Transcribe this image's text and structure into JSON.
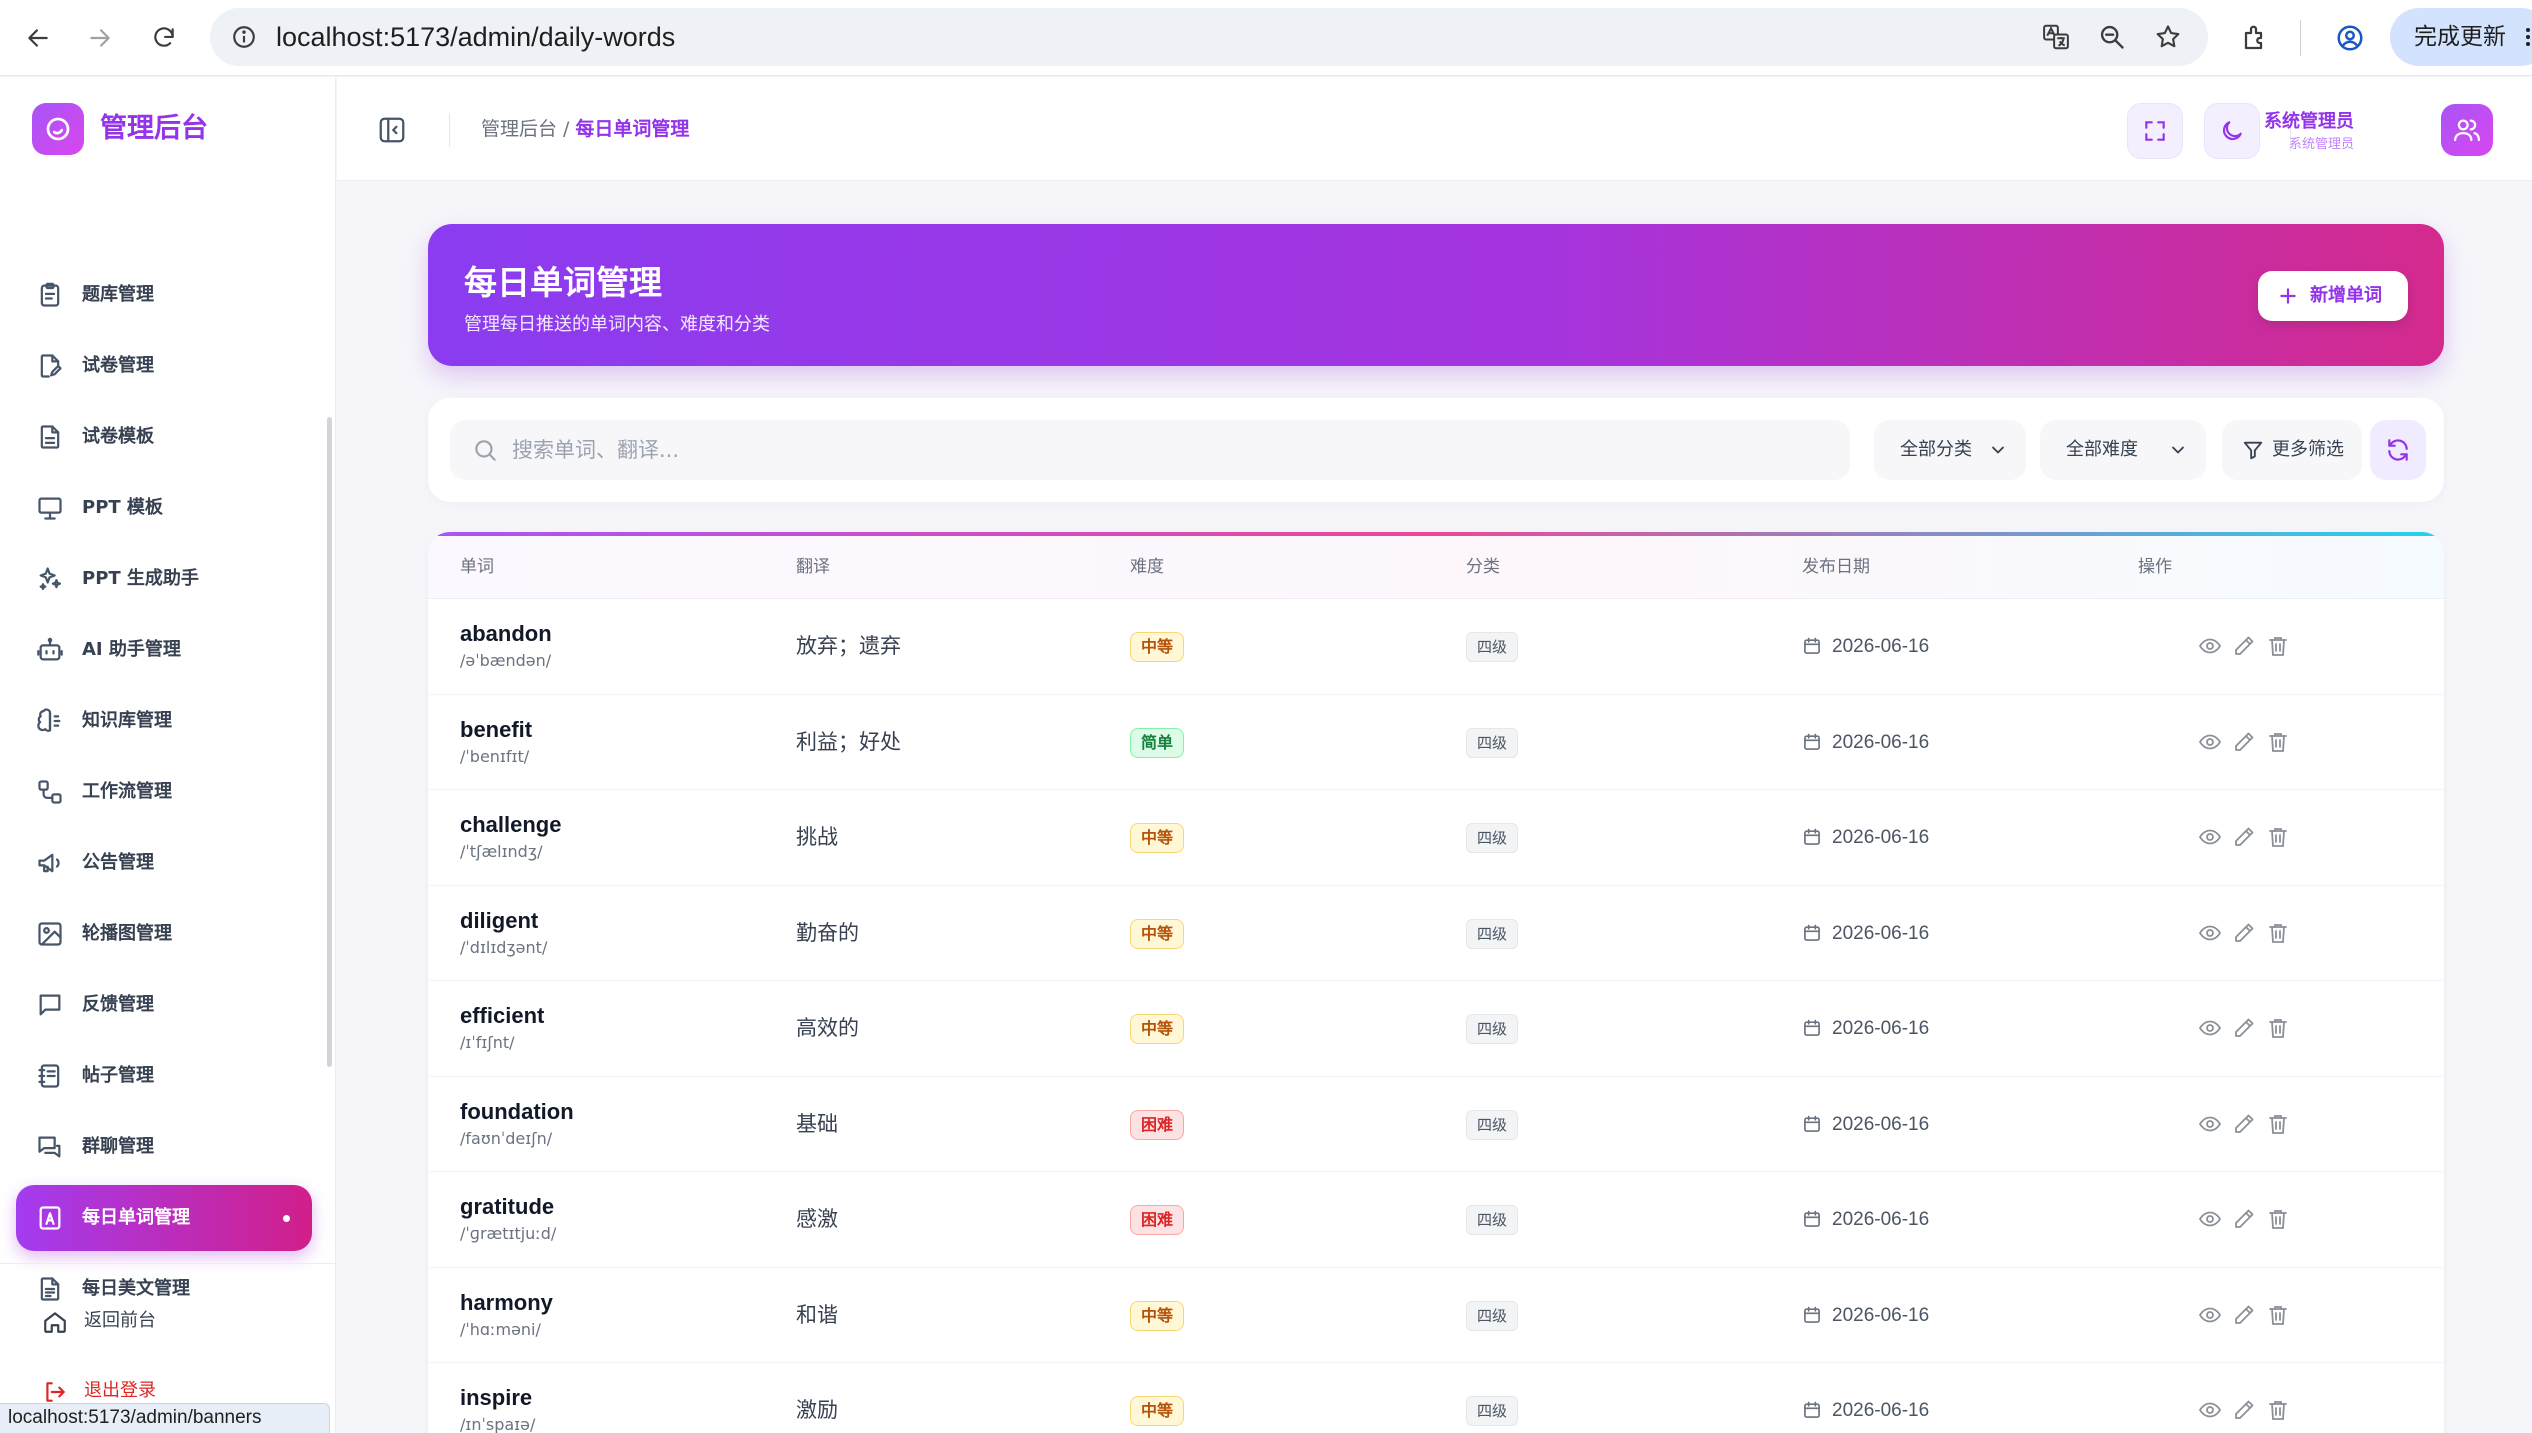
{
  "browser": {
    "url": "localhost:5173/admin/daily-words",
    "update_label": "完成更新",
    "status_url": "localhost:5173/admin/banners"
  },
  "sidebar": {
    "brand": "管理后台",
    "items": [
      {
        "label": "题库管理",
        "icon": "clipboard-icon"
      },
      {
        "label": "试卷管理",
        "icon": "file-edit-icon"
      },
      {
        "label": "试卷模板",
        "icon": "file-text-icon"
      },
      {
        "label": "PPT 模板",
        "icon": "presentation-icon"
      },
      {
        "label": "PPT 生成助手",
        "icon": "sparkles-icon"
      },
      {
        "label": "AI 助手管理",
        "icon": "bot-icon"
      },
      {
        "label": "知识库管理",
        "icon": "brain-icon"
      },
      {
        "label": "工作流管理",
        "icon": "workflow-icon"
      },
      {
        "label": "公告管理",
        "icon": "megaphone-icon"
      },
      {
        "label": "轮播图管理",
        "icon": "image-icon"
      },
      {
        "label": "反馈管理",
        "icon": "message-square-icon"
      },
      {
        "label": "帖子管理",
        "icon": "notebook-icon"
      },
      {
        "label": "群聊管理",
        "icon": "messages-icon"
      },
      {
        "label": "每日单词管理",
        "icon": "letter-a-icon",
        "active": true
      },
      {
        "label": "每日美文管理",
        "icon": "article-icon"
      }
    ],
    "footer": {
      "home_label": "返回前台",
      "logout_label": "退出登录"
    }
  },
  "header": {
    "breadcrumb_root": "管理后台",
    "breadcrumb_sep": "/",
    "breadcrumb_current": "每日单词管理",
    "user_name": "系统管理员",
    "user_role": "系统管理员"
  },
  "banner": {
    "title": "每日单词管理",
    "subtitle": "管理每日推送的单词内容、难度和分类",
    "add_label": "新增单词"
  },
  "filters": {
    "search_placeholder": "搜索单词、翻译...",
    "category": "全部分类",
    "difficulty": "全部难度",
    "more": "更多筛选"
  },
  "table": {
    "columns": [
      "单词",
      "翻译",
      "难度",
      "分类",
      "发布日期",
      "操作"
    ],
    "rows": [
      {
        "word": "abandon",
        "phonetic": "/əˈbændən/",
        "translation": "放弃；遗弃",
        "difficulty": "中等",
        "level": "medium",
        "category": "四级",
        "date": "2026-06-16"
      },
      {
        "word": "benefit",
        "phonetic": "/ˈbenɪfɪt/",
        "translation": "利益；好处",
        "difficulty": "简单",
        "level": "easy",
        "category": "四级",
        "date": "2026-06-16"
      },
      {
        "word": "challenge",
        "phonetic": "/ˈtʃælɪndʒ/",
        "translation": "挑战",
        "difficulty": "中等",
        "level": "medium",
        "category": "四级",
        "date": "2026-06-16"
      },
      {
        "word": "diligent",
        "phonetic": "/ˈdɪlɪdʒənt/",
        "translation": "勤奋的",
        "difficulty": "中等",
        "level": "medium",
        "category": "四级",
        "date": "2026-06-16"
      },
      {
        "word": "efficient",
        "phonetic": "/ɪˈfɪʃnt/",
        "translation": "高效的",
        "difficulty": "中等",
        "level": "medium",
        "category": "四级",
        "date": "2026-06-16"
      },
      {
        "word": "foundation",
        "phonetic": "/faʊnˈdeɪʃn/",
        "translation": "基础",
        "difficulty": "困难",
        "level": "hard",
        "category": "四级",
        "date": "2026-06-16"
      },
      {
        "word": "gratitude",
        "phonetic": "/ˈɡrætɪtjuːd/",
        "translation": "感激",
        "difficulty": "困难",
        "level": "hard",
        "category": "四级",
        "date": "2026-06-16"
      },
      {
        "word": "harmony",
        "phonetic": "/ˈhɑːməni/",
        "translation": "和谐",
        "difficulty": "中等",
        "level": "medium",
        "category": "四级",
        "date": "2026-06-16"
      },
      {
        "word": "inspire",
        "phonetic": "/ɪnˈspaɪə/",
        "translation": "激励",
        "difficulty": "中等",
        "level": "medium",
        "category": "四级",
        "date": "2026-06-16"
      }
    ]
  },
  "colors": {
    "accent": "#9333ea",
    "banner_start": "#8b3cf0",
    "banner_end": "#d42a8d"
  }
}
